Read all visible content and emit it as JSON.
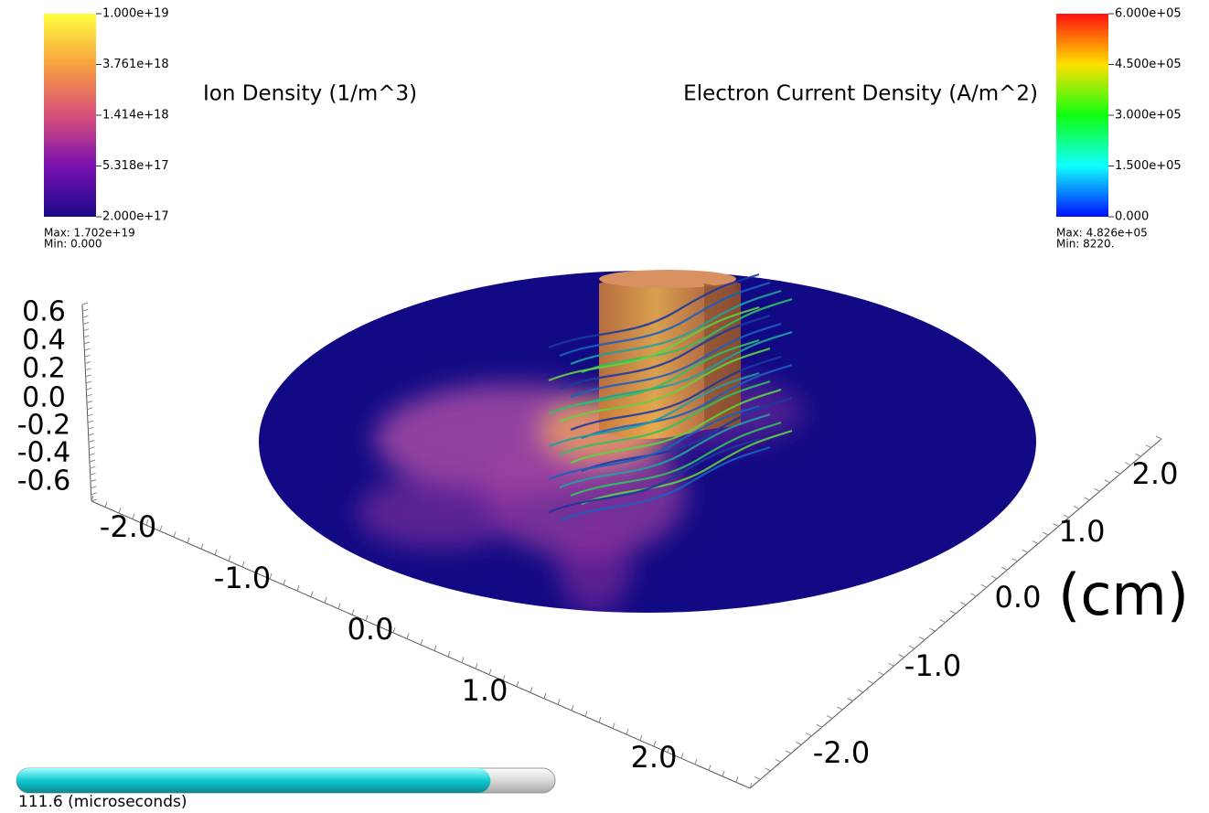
{
  "legends": [
    {
      "title": "Ion Density (1/m^3)",
      "ticks": [
        "1.000e+19",
        "3.761e+18",
        "1.414e+18",
        "5.318e+17",
        "2.000e+17"
      ],
      "max": "Max: 1.702e+19",
      "min": "Min: 0.000"
    },
    {
      "title": "Electron Current Density (A/m^2)",
      "ticks": [
        "6.000e+05",
        "4.500e+05",
        "3.000e+05",
        "1.500e+05",
        "0.000"
      ],
      "max": "Max: 4.826e+05",
      "min": "Min: 8220."
    }
  ],
  "axes": {
    "z_ticks": [
      "0.6",
      "0.4",
      "0.2",
      "0.0",
      "-0.2",
      "-0.4",
      "-0.6"
    ],
    "x_ticks": [
      "-2.0",
      "-1.0",
      "0.0",
      "1.0",
      "2.0"
    ],
    "y_ticks": [
      "2.0",
      "1.0",
      "0.0",
      "-1.0",
      "-2.0"
    ],
    "unit": "(cm)"
  },
  "time": {
    "label": "111.6 (microseconds)",
    "progress": 0.88
  }
}
